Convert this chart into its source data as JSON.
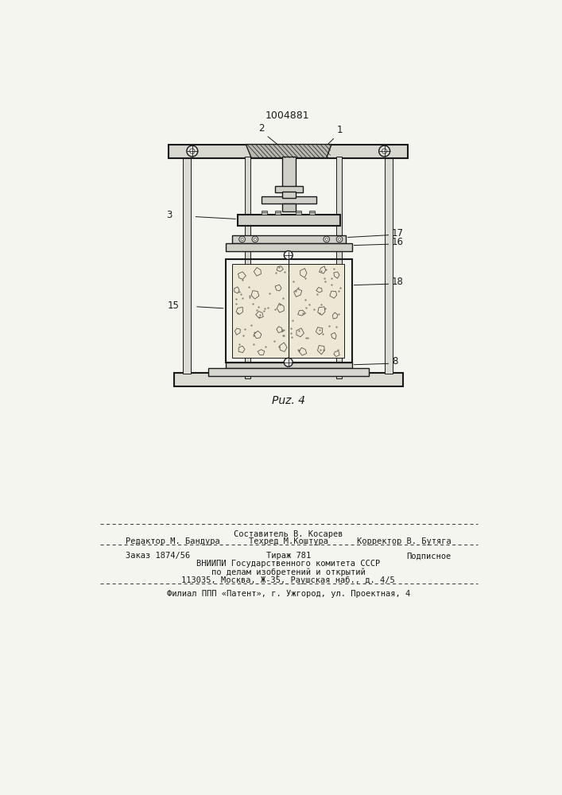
{
  "patent_number": "1004881",
  "fig_label": "Puz. 4",
  "bg_color": "#f5f5f0",
  "line_color": "#1a1a1a",
  "footer_line1_center": "Составитель В. Косарев",
  "footer_line2_left": "Редактор М. Бандура",
  "footer_line2_center": "Техред М.Коштура",
  "footer_line2_right": "Корректор В. Бутяга",
  "footer_line3_left": "Заказ 1874/56",
  "footer_line3_center": "Тираж 781",
  "footer_line3_right": "Подписное",
  "footer_line4": "ВНИИПИ Государственного комитета СССР",
  "footer_line5": "по делам изобретений и открытий",
  "footer_line6": "113035, Москва, Ж-35, Раушская наб., д. 4/5",
  "footer_line7": "Филиал ППП «Патент», г. Ужгород, ул. Проектная, 4"
}
